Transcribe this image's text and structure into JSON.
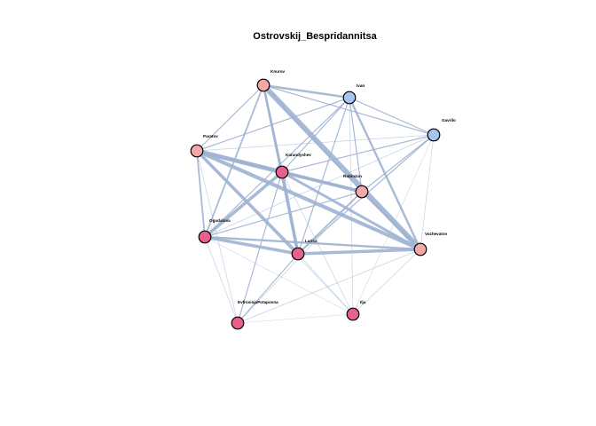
{
  "title": "Ostrovskij_Bespridannitsa",
  "colors": {
    "edge": "#9fb3d1",
    "node_stroke": "#000000",
    "female": "#e8608c",
    "male_light": "#f5a8a8",
    "male_blue": "#a6c4ee"
  },
  "nodes": [
    {
      "id": "Knurov",
      "label": "Knurov",
      "group": "male_light"
    },
    {
      "id": "Ivan",
      "label": "Ivan",
      "group": "male_blue"
    },
    {
      "id": "Gavrilo",
      "label": "Gavrilo",
      "group": "male_blue"
    },
    {
      "id": "Paratov",
      "label": "Paratov",
      "group": "male_light"
    },
    {
      "id": "Karandyshev",
      "label": "Karandyshev",
      "group": "female"
    },
    {
      "id": "Robinzon",
      "label": "Robinzon",
      "group": "male_light"
    },
    {
      "id": "Ogudalova",
      "label": "Ogudalova",
      "group": "female"
    },
    {
      "id": "Larisa",
      "label": "Larisa",
      "group": "female"
    },
    {
      "id": "Vozhevatov",
      "label": "Vozhevatov",
      "group": "male_light"
    },
    {
      "id": "EvfrosinjaPotapovna",
      "label": "EvfrosinjaPotapovna",
      "group": "female"
    },
    {
      "id": "Ilja",
      "label": "Ilja",
      "group": "female"
    }
  ],
  "edges": [
    {
      "s": "Knurov",
      "t": "Vozhevatov",
      "w": 5
    },
    {
      "s": "Knurov",
      "t": "Ivan",
      "w": 2
    },
    {
      "s": "Knurov",
      "t": "Gavrilo",
      "w": 1
    },
    {
      "s": "Knurov",
      "t": "Karandyshev",
      "w": 2
    },
    {
      "s": "Knurov",
      "t": "Larisa",
      "w": 2
    },
    {
      "s": "Knurov",
      "t": "Ogudalova",
      "w": 1.5
    },
    {
      "s": "Knurov",
      "t": "Paratov",
      "w": 1
    },
    {
      "s": "Knurov",
      "t": "Robinzon",
      "w": 1
    },
    {
      "s": "Ivan",
      "t": "Vozhevatov",
      "w": 2
    },
    {
      "s": "Ivan",
      "t": "Gavrilo",
      "w": 1
    },
    {
      "s": "Ivan",
      "t": "Paratov",
      "w": 1
    },
    {
      "s": "Ivan",
      "t": "Karandyshev",
      "w": 1
    },
    {
      "s": "Ivan",
      "t": "Robinzon",
      "w": 1
    },
    {
      "s": "Ivan",
      "t": "Larisa",
      "w": 1
    },
    {
      "s": "Ivan",
      "t": "Ogudalova",
      "w": 1
    },
    {
      "s": "Ivan",
      "t": "Ilja",
      "w": 0.6
    },
    {
      "s": "Gavrilo",
      "t": "Paratov",
      "w": 0.6
    },
    {
      "s": "Gavrilo",
      "t": "Karandyshev",
      "w": 1
    },
    {
      "s": "Gavrilo",
      "t": "Robinzon",
      "w": 1
    },
    {
      "s": "Gavrilo",
      "t": "Larisa",
      "w": 1
    },
    {
      "s": "Gavrilo",
      "t": "Vozhevatov",
      "w": 0.6
    },
    {
      "s": "Gavrilo",
      "t": "Ogudalova",
      "w": 0.6
    },
    {
      "s": "Gavrilo",
      "t": "Ilja",
      "w": 0.4
    },
    {
      "s": "Paratov",
      "t": "Karandyshev",
      "w": 4
    },
    {
      "s": "Paratov",
      "t": "Robinzon",
      "w": 3
    },
    {
      "s": "Paratov",
      "t": "Vozhevatov",
      "w": 3.5
    },
    {
      "s": "Paratov",
      "t": "Larisa",
      "w": 3
    },
    {
      "s": "Paratov",
      "t": "Ogudalova",
      "w": 1.5
    },
    {
      "s": "Paratov",
      "t": "EvfrosinjaPotapovna",
      "w": 0.6
    },
    {
      "s": "Paratov",
      "t": "Ilja",
      "w": 0.6
    },
    {
      "s": "Karandyshev",
      "t": "Robinzon",
      "w": 3
    },
    {
      "s": "Karandyshev",
      "t": "Larisa",
      "w": 3
    },
    {
      "s": "Karandyshev",
      "t": "Ogudalova",
      "w": 3
    },
    {
      "s": "Karandyshev",
      "t": "Vozhevatov",
      "w": 2.5
    },
    {
      "s": "Karandyshev",
      "t": "EvfrosinjaPotapovna",
      "w": 1
    },
    {
      "s": "Karandyshev",
      "t": "Ilja",
      "w": 0.6
    },
    {
      "s": "Robinzon",
      "t": "Vozhevatov",
      "w": 2
    },
    {
      "s": "Robinzon",
      "t": "Larisa",
      "w": 1.5
    },
    {
      "s": "Robinzon",
      "t": "Ogudalova",
      "w": 1
    },
    {
      "s": "Robinzon",
      "t": "EvfrosinjaPotapovna",
      "w": 0.6
    },
    {
      "s": "Ogudalova",
      "t": "Larisa",
      "w": 3
    },
    {
      "s": "Ogudalova",
      "t": "Vozhevatov",
      "w": 2
    },
    {
      "s": "Ogudalova",
      "t": "EvfrosinjaPotapovna",
      "w": 0.6
    },
    {
      "s": "Ogudalova",
      "t": "Ilja",
      "w": 0.4
    },
    {
      "s": "Larisa",
      "t": "Vozhevatov",
      "w": 3
    },
    {
      "s": "Larisa",
      "t": "EvfrosinjaPotapovna",
      "w": 1
    },
    {
      "s": "Larisa",
      "t": "Ilja",
      "w": 0.6
    },
    {
      "s": "Vozhevatov",
      "t": "EvfrosinjaPotapovna",
      "w": 0.6
    },
    {
      "s": "Vozhevatov",
      "t": "Ilja",
      "w": 0.6
    },
    {
      "s": "EvfrosinjaPotapovna",
      "t": "Ilja",
      "w": 0.4
    }
  ]
}
